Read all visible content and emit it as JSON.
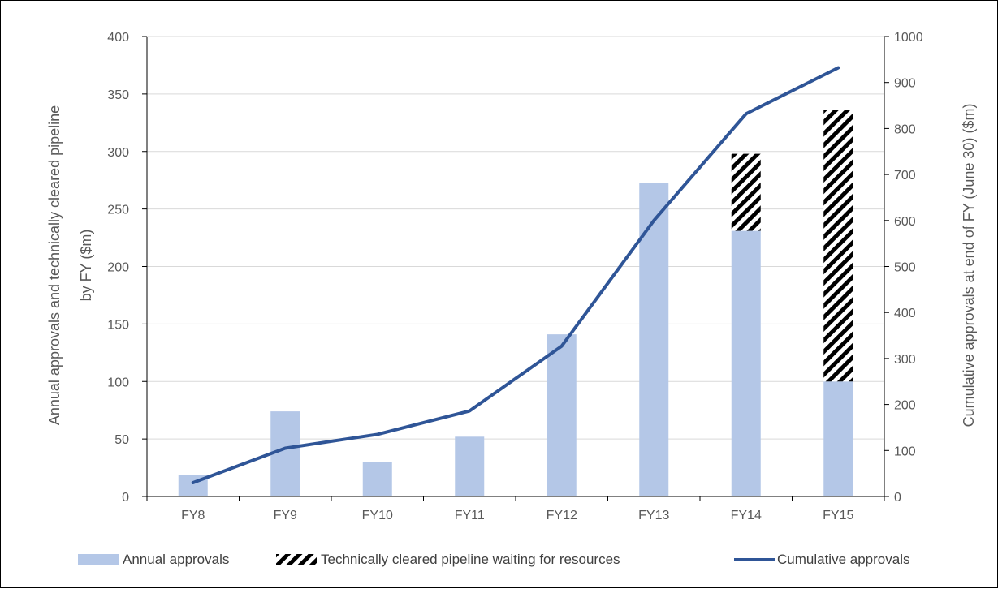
{
  "chart_data": {
    "type": "bar",
    "categories": [
      "FY8",
      "FY9",
      "FY10",
      "FY11",
      "FY12",
      "FY13",
      "FY14",
      "FY15"
    ],
    "series": [
      {
        "name": "Annual approvals",
        "type": "bar",
        "axis": "left",
        "color": "#b4c7e7",
        "values": [
          19,
          74,
          30,
          52,
          141,
          273,
          231,
          100
        ]
      },
      {
        "name": "Technically cleared pipeline waiting for resources",
        "type": "bar-stacked-hatched",
        "axis": "left",
        "color": "#000000",
        "values": [
          0,
          0,
          0,
          0,
          0,
          0,
          67,
          236
        ]
      },
      {
        "name": "Cumulative approvals",
        "type": "line",
        "axis": "right",
        "color": "#2f5597",
        "values": [
          30,
          105,
          135,
          186,
          327,
          600,
          832,
          932
        ]
      }
    ],
    "ylabel_left": "Annual approvals and technically cleared pipeline by FY ($m)",
    "ylabel_right": "Cumulative approvals at end of FY (June 30) ($m)",
    "ylim_left": [
      0,
      400
    ],
    "yticks_left": [
      0,
      50,
      100,
      150,
      200,
      250,
      300,
      350,
      400
    ],
    "ylim_right": [
      0,
      1000
    ],
    "yticks_right": [
      0,
      100,
      200,
      300,
      400,
      500,
      600,
      700,
      800,
      900,
      1000
    ],
    "grid": true,
    "legend": "bottom"
  }
}
